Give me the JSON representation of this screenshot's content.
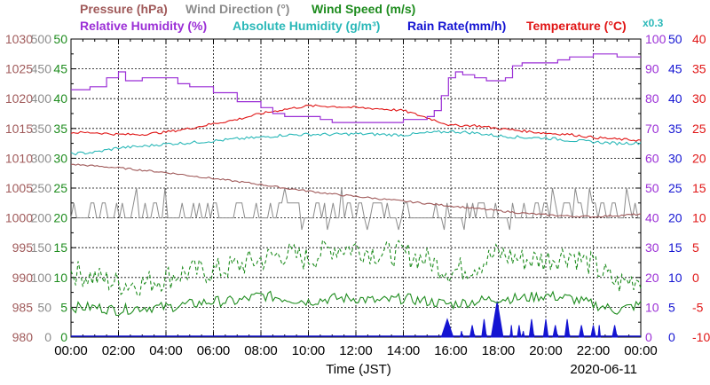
{
  "chart_data": {
    "type": "line",
    "title_segments": [
      {
        "id": "pressure",
        "label": "Pressure (hPa)",
        "color": "#a05a5a"
      },
      {
        "id": "wind_dir",
        "label": "Wind Direction (°)",
        "color": "#8c8c8c"
      },
      {
        "id": "wind_speed",
        "label": "Wind Speed (m/s)",
        "color": "#1e8c1e"
      },
      {
        "id": "rh",
        "label": "Relative Humidity (%)",
        "color": "#9b2fd6"
      },
      {
        "id": "ah",
        "label": "Absolute Humidity (g/m³)",
        "color": "#2ab8b8"
      },
      {
        "id": "rain",
        "label": "Rain Rate(mm/h)",
        "color": "#1414d2"
      },
      {
        "id": "temp",
        "label": "Temperature (°C)",
        "color": "#e01515"
      }
    ],
    "multiplier_note": "x0.3",
    "xlabel": "Time (JST)",
    "date": "2020-06-11",
    "x_ticks": [
      "00:00",
      "02:00",
      "04:00",
      "06:00",
      "08:00",
      "10:00",
      "12:00",
      "14:00",
      "16:00",
      "18:00",
      "20:00",
      "22:00",
      "00:00"
    ],
    "x_range_hours": [
      0,
      24
    ],
    "left_axes": [
      {
        "id": "pressure",
        "color": "#a05a5a",
        "ticks": [
          "980",
          "985",
          "990",
          "995",
          "1000",
          "1005",
          "1010",
          "1015",
          "1020",
          "1025",
          "1030"
        ]
      },
      {
        "id": "wind_dir",
        "color": "#8c8c8c",
        "ticks": [
          "0",
          "50",
          "100",
          "150",
          "200",
          "250",
          "300",
          "350",
          "400",
          "450",
          "500"
        ]
      },
      {
        "id": "wind_speed",
        "color": "#1e8c1e",
        "ticks": [
          "0",
          "5",
          "10",
          "15",
          "20",
          "25",
          "30",
          "35",
          "40",
          "45",
          "50"
        ]
      }
    ],
    "right_axes": [
      {
        "id": "rh",
        "color": "#9b2fd6",
        "ticks": [
          "0",
          "10",
          "20",
          "30",
          "40",
          "50",
          "60",
          "70",
          "80",
          "90",
          "100"
        ]
      },
      {
        "id": "rain",
        "color": "#1414d2",
        "ticks": [
          "0",
          "5",
          "10",
          "15",
          "20",
          "25",
          "30",
          "35",
          "40",
          "45",
          "50"
        ]
      },
      {
        "id": "temp",
        "color": "#e01515",
        "ticks": [
          "-10",
          "-5",
          "0",
          "5",
          "10",
          "15",
          "20",
          "25",
          "30",
          "35",
          "40"
        ]
      }
    ],
    "grid": true,
    "series": [
      {
        "id": "rh",
        "name": "Relative Humidity (%)",
        "color": "#9b2fd6",
        "axis": "rh",
        "style": "solid",
        "x": [
          0,
          0.8,
          1.5,
          2.0,
          2.3,
          3.0,
          4.0,
          4.5,
          5.0,
          6.0,
          7.0,
          8.0,
          8.5,
          9.0,
          10.0,
          10.5,
          11.0,
          12.0,
          13.0,
          14.0,
          14.5,
          15.0,
          15.3,
          15.6,
          15.9,
          16.2,
          16.5,
          17.0,
          17.5,
          18.0,
          18.3,
          18.6,
          19.0,
          20.0,
          20.5,
          21.0,
          21.5,
          22.0,
          23.0,
          24.0
        ],
        "y": [
          83,
          84,
          87,
          89,
          86,
          87,
          87,
          85,
          84,
          82,
          79,
          77,
          75,
          74,
          74,
          73,
          72,
          72,
          72,
          73,
          73,
          74,
          76,
          81,
          87,
          89,
          88,
          87,
          86,
          86,
          87,
          91,
          92,
          92,
          93,
          94,
          94,
          95,
          94,
          94
        ]
      },
      {
        "id": "temp",
        "name": "Temperature (°C)",
        "color": "#e01515",
        "axis": "temp",
        "style": "solid",
        "x": [
          0,
          1,
          2,
          3,
          4,
          5,
          6,
          7,
          8,
          9,
          10,
          11,
          12,
          13,
          14,
          15,
          16,
          17,
          18,
          19,
          20,
          21,
          22,
          23,
          24
        ],
        "y": [
          24.3,
          24.3,
          24.0,
          24.0,
          24.4,
          25.0,
          25.8,
          26.5,
          27.5,
          28.2,
          28.8,
          28.7,
          28.5,
          28.3,
          28.0,
          26.8,
          25.5,
          25.5,
          25.0,
          24.6,
          24.2,
          24.0,
          23.5,
          23.2,
          23.0
        ]
      },
      {
        "id": "ah",
        "name": "Absolute Humidity (g/m³)",
        "color": "#2ab8b8",
        "axis": "ah_scaled",
        "style": "solid",
        "x": [
          0,
          1,
          2,
          3,
          4,
          5,
          6,
          7,
          8,
          9,
          10,
          11,
          12,
          13,
          14,
          15,
          16,
          17,
          18,
          19,
          20,
          21,
          22,
          23,
          24
        ],
        "y": [
          61.5,
          62.0,
          63.5,
          64.0,
          64.8,
          65.2,
          65.8,
          66.5,
          67.0,
          67.8,
          68.0,
          68.0,
          68.2,
          68.0,
          67.8,
          68.5,
          69.0,
          68.5,
          67.5,
          67.0,
          66.8,
          66.0,
          65.5,
          65.0,
          65.2
        ]
      },
      {
        "id": "pressure",
        "name": "Pressure (hPa)",
        "color": "#a05a5a",
        "axis": "pressure",
        "style": "solid",
        "x": [
          0,
          1,
          2,
          3,
          4,
          5,
          6,
          7,
          8,
          9,
          10,
          11,
          12,
          13,
          14,
          15,
          16,
          17,
          18,
          19,
          20,
          21,
          22,
          23,
          24
        ],
        "y": [
          1009.0,
          1008.7,
          1008.4,
          1008.0,
          1007.6,
          1007.1,
          1006.6,
          1006.1,
          1005.6,
          1005.0,
          1004.5,
          1004.0,
          1003.6,
          1003.2,
          1002.8,
          1002.4,
          1002.0,
          1001.6,
          1001.2,
          1000.8,
          1000.5,
          1000.3,
          1000.2,
          1000.4,
          1000.6
        ]
      },
      {
        "id": "wind_dir",
        "name": "Wind Direction (°)",
        "color": "#8c8c8c",
        "axis": "wind_dir",
        "style": "spiky",
        "base": 200,
        "peaks": [
          225,
          250
        ],
        "range": [
          180,
          250
        ]
      },
      {
        "id": "wind_speed_max",
        "name": "Wind Speed (m/s) gust",
        "color": "#1e8c1e",
        "axis": "wind_speed",
        "style": "dashed",
        "x": [
          0,
          1,
          2,
          3,
          4,
          5,
          6,
          7,
          8,
          9,
          10,
          11,
          12,
          13,
          14,
          15,
          16,
          17,
          18,
          19,
          20,
          21,
          22,
          23,
          24
        ],
        "y": [
          11,
          10,
          9,
          9,
          10,
          11,
          11,
          12,
          13,
          14,
          13,
          15,
          15,
          14,
          14,
          13,
          11,
          12,
          14,
          13,
          13,
          14,
          12,
          9,
          10
        ]
      },
      {
        "id": "wind_speed",
        "name": "Wind Speed (m/s)",
        "color": "#1e8c1e",
        "axis": "wind_speed",
        "style": "solid",
        "x": [
          0,
          1,
          2,
          3,
          4,
          5,
          6,
          7,
          8,
          9,
          10,
          11,
          12,
          13,
          14,
          15,
          16,
          17,
          18,
          19,
          20,
          21,
          22,
          23,
          24
        ],
        "y": [
          5,
          5,
          4.5,
          5,
          5,
          5.5,
          6,
          6,
          7,
          6.5,
          6,
          6.5,
          6.5,
          6,
          6.5,
          6,
          5.5,
          6,
          6.5,
          6.5,
          7,
          6.5,
          5.5,
          4.5,
          5.5
        ]
      },
      {
        "id": "rain",
        "name": "Rain Rate(mm/h)",
        "color": "#1414d2",
        "axis": "rain",
        "style": "bars",
        "bars": [
          [
            15.6,
            16.1,
            3
          ],
          [
            17.7,
            18.2,
            6
          ],
          [
            16.8,
            17.0,
            2
          ],
          [
            17.3,
            17.5,
            3
          ],
          [
            18.8,
            18.95,
            2
          ],
          [
            19.3,
            19.5,
            3
          ],
          [
            19.9,
            20.1,
            3
          ],
          [
            20.3,
            20.5,
            2
          ],
          [
            20.8,
            21.0,
            3
          ],
          [
            21.4,
            21.6,
            2
          ],
          [
            21.9,
            22.1,
            2
          ],
          [
            22.2,
            22.3,
            2
          ],
          [
            22.8,
            23.0,
            2
          ],
          [
            16.4,
            16.5,
            1
          ],
          [
            18.5,
            18.6,
            2
          ],
          [
            19.0,
            19.1,
            1
          ]
        ]
      }
    ]
  }
}
